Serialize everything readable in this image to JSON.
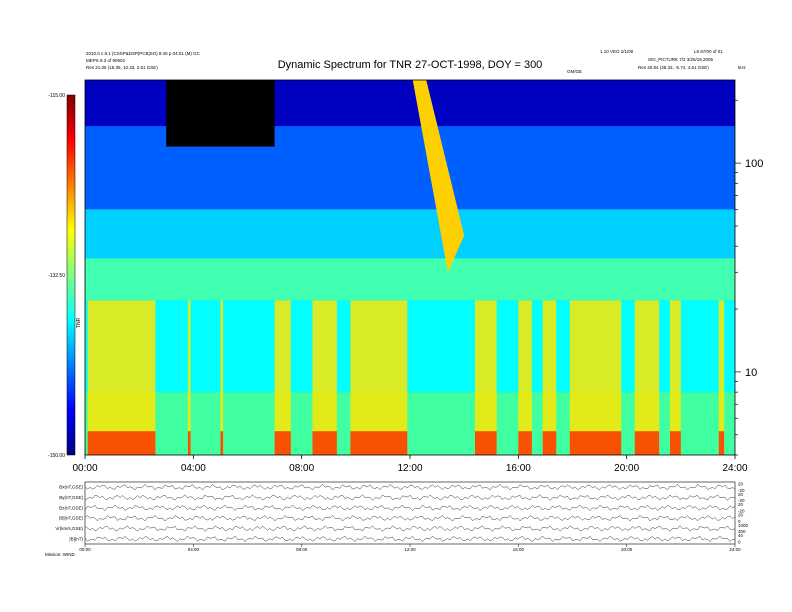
{
  "header": {
    "left_line1": "2010.0 v 8.1 (CSSP&DSP|PCB|SO) 8:45 p  04:01 (M) GC",
    "left_line2": "MEPS 8.3 of 90902",
    "left_line3": "Res     21.05 (15.35, 10.33, 2.61 GSE)",
    "right_line1": "1.10 VEO 2/1/00",
    "right_line2": "L5 87/00 of 01",
    "right_line3": "SIG_PICTURE 7/2 3/25/18,2005",
    "right_line4": "Res     40.84 (38.33, -5.74, 4.61 GSE)",
    "center_small": "GM/GE",
    "freq_unit": "kHz"
  },
  "chart_data": {
    "type": "heatmap",
    "title": "Dynamic Spectrum for TNR 27-OCT-1998, DOY = 300",
    "x_ticks": [
      "00:00",
      "04:00",
      "08:00",
      "12:00",
      "16:00",
      "20:00",
      "24:00"
    ],
    "x_range_hours": [
      0,
      24
    ],
    "y_scale": "log",
    "y_range_khz": [
      4,
      250
    ],
    "y_ticks": [
      {
        "value": 10,
        "label": "10"
      },
      {
        "value": 100,
        "label": "100"
      }
    ],
    "colorbar": {
      "range": [
        -150.0,
        -115.0
      ],
      "ticks": [
        "-115.00",
        "-132.50",
        "-150.00"
      ],
      "label": "TNR",
      "colors": [
        "#00007f",
        "#0000ff",
        "#007fff",
        "#00ffff",
        "#7fff7f",
        "#ffff00",
        "#ff7f00",
        "#ff0000",
        "#7f0000"
      ]
    },
    "lower_panel": {
      "rows": [
        {
          "label": "Bx(nT,GSE)",
          "ticks": [
            "20",
            "-20"
          ]
        },
        {
          "label": "By(nT,GSE)",
          "ticks": [
            "20",
            "-20"
          ]
        },
        {
          "label": "Bz(nT,GSE)",
          "ticks": [
            "20",
            "-20"
          ]
        },
        {
          "label": "|B|(nT,GSE)",
          "ticks": [
            "20",
            "0"
          ]
        },
        {
          "label": "Vr(km/s,GSE)",
          "ticks": [
            "1000",
            "300"
          ]
        },
        {
          "label": "|B|(nT)",
          "ticks": [
            "40",
            "0"
          ]
        }
      ],
      "x_ticks": [
        "00:00",
        "04:00",
        "08:00",
        "12:00",
        "16:00",
        "20:00",
        "24:00"
      ],
      "corner_label": "Mission: WIND"
    }
  }
}
